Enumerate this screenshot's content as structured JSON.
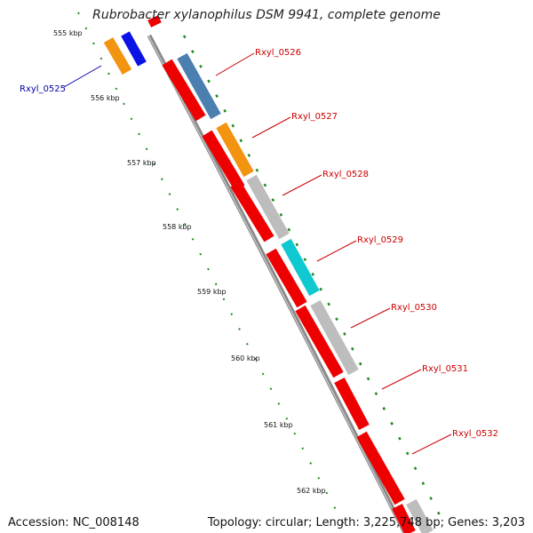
{
  "title": "Rubrobacter xylanophilus DSM 9941, complete genome",
  "accession": "Accession: NC_008148",
  "topology": "Topology: circular; Length: 3,225,748 bp; Genes: 3,203",
  "ticks": [
    "555 kbp",
    "556 kbp",
    "557 kbp",
    "558 kbp",
    "559 kbp",
    "560 kbp",
    "561 kbp",
    "562 kbp"
  ],
  "colors": {
    "red": "#ee0000",
    "steelblue": "#4a7fb0",
    "orange": "#f39410",
    "gray": "#bdbdbd",
    "cyan": "#10c8d0",
    "blue": "#0a12e6",
    "label_red": "#cc0000",
    "label_blue": "#0000aa",
    "tick_green": "#1f8a1f"
  },
  "genes": [
    {
      "id": "Rxyl_0525",
      "color": "blue"
    },
    {
      "id": "Rxyl_0526",
      "color": "red"
    },
    {
      "id": "Rxyl_0527",
      "color": "red"
    },
    {
      "id": "Rxyl_0528",
      "color": "red"
    },
    {
      "id": "Rxyl_0529",
      "color": "red"
    },
    {
      "id": "Rxyl_0530",
      "color": "red"
    },
    {
      "id": "Rxyl_0531",
      "color": "red"
    },
    {
      "id": "Rxyl_0532",
      "color": "red"
    }
  ]
}
